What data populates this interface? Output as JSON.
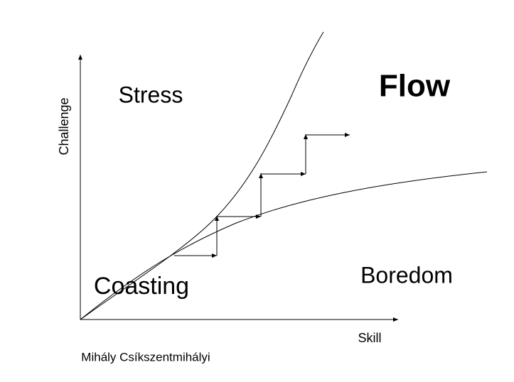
{
  "diagram": {
    "regions": {
      "stress": "Stress",
      "flow": "Flow",
      "coasting": "Coasting",
      "boredom": "Boredom"
    },
    "x_axis_label": "Skill",
    "y_axis_label": "Challenge",
    "credit": "Mihály Csíkszentmihályi"
  }
}
